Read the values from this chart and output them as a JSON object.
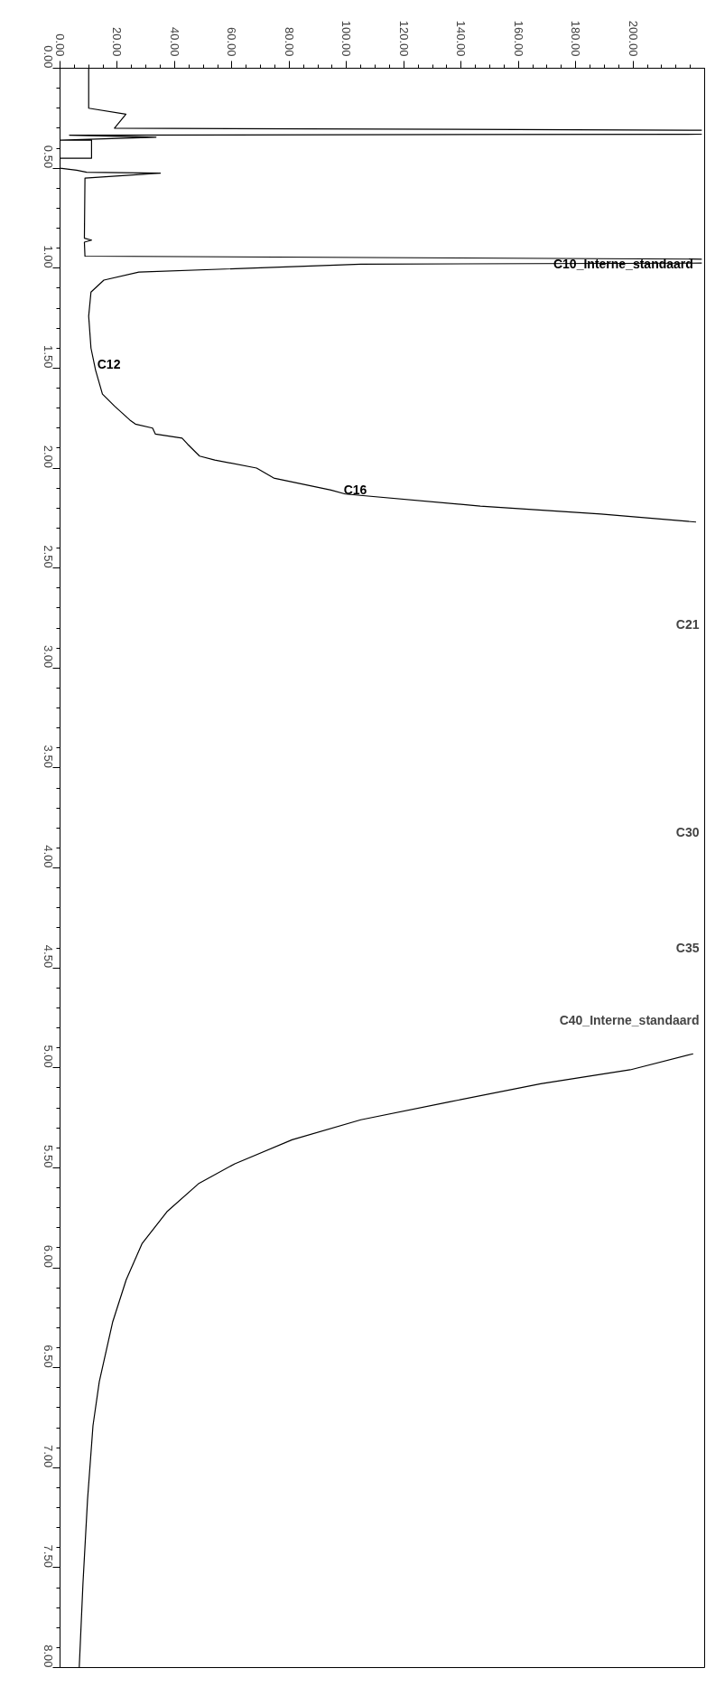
{
  "chart_data": {
    "type": "line",
    "xlim": [
      0,
      225
    ],
    "ylim": [
      8,
      0
    ],
    "xticks": [
      {
        "value": 0,
        "label": "0.00"
      },
      {
        "value": 20,
        "label": "20.00"
      },
      {
        "value": 40,
        "label": "40.00"
      },
      {
        "value": 60,
        "label": "60.00"
      },
      {
        "value": 80,
        "label": "80.00"
      },
      {
        "value": 100,
        "label": "100.00"
      },
      {
        "value": 120,
        "label": "120.00"
      },
      {
        "value": 140,
        "label": "140.00"
      },
      {
        "value": 160,
        "label": "160.00"
      },
      {
        "value": 180,
        "label": "180.00"
      },
      {
        "value": 200,
        "label": "200.00"
      },
      {
        "value": 5,
        "label": null
      },
      {
        "value": 10,
        "label": null
      },
      {
        "value": 15,
        "label": null
      },
      {
        "value": 25,
        "label": null
      },
      {
        "value": 30,
        "label": null
      },
      {
        "value": 35,
        "label": null
      },
      {
        "value": 45,
        "label": null
      },
      {
        "value": 50,
        "label": null
      },
      {
        "value": 55,
        "label": null
      },
      {
        "value": 65,
        "label": null
      },
      {
        "value": 70,
        "label": null
      },
      {
        "value": 75,
        "label": null
      },
      {
        "value": 85,
        "label": null
      },
      {
        "value": 90,
        "label": null
      },
      {
        "value": 95,
        "label": null
      },
      {
        "value": 105,
        "label": null
      },
      {
        "value": 110,
        "label": null
      },
      {
        "value": 115,
        "label": null
      },
      {
        "value": 125,
        "label": null
      },
      {
        "value": 130,
        "label": null
      },
      {
        "value": 135,
        "label": null
      },
      {
        "value": 145,
        "label": null
      },
      {
        "value": 150,
        "label": null
      },
      {
        "value": 155,
        "label": null
      },
      {
        "value": 165,
        "label": null
      },
      {
        "value": 170,
        "label": null
      },
      {
        "value": 175,
        "label": null
      },
      {
        "value": 185,
        "label": null
      },
      {
        "value": 190,
        "label": null
      },
      {
        "value": 195,
        "label": null
      },
      {
        "value": 205,
        "label": null
      },
      {
        "value": 210,
        "label": null
      },
      {
        "value": 215,
        "label": null
      },
      {
        "value": 220,
        "label": null
      }
    ],
    "yticks": [
      {
        "value": 0,
        "label": "0.00"
      },
      {
        "value": 0.5,
        "label": "0.50"
      },
      {
        "value": 1,
        "label": "1.00"
      },
      {
        "value": 1.5,
        "label": "1.50"
      },
      {
        "value": 2,
        "label": "2.00"
      },
      {
        "value": 2.5,
        "label": "2.50"
      },
      {
        "value": 3,
        "label": "3.00"
      },
      {
        "value": 3.5,
        "label": "3.50"
      },
      {
        "value": 4,
        "label": "4.00"
      },
      {
        "value": 4.5,
        "label": "4.50"
      },
      {
        "value": 5,
        "label": "5.00"
      },
      {
        "value": 5.5,
        "label": "5.50"
      },
      {
        "value": 6,
        "label": "6.00"
      },
      {
        "value": 6.5,
        "label": "6.50"
      },
      {
        "value": 7,
        "label": "7.00"
      },
      {
        "value": 7.5,
        "label": "7.50"
      },
      {
        "value": 8,
        "label": "8.00"
      },
      {
        "value": 0.1,
        "label": null
      },
      {
        "value": 0.2,
        "label": null
      },
      {
        "value": 0.3,
        "label": null
      },
      {
        "value": 0.4,
        "label": null
      },
      {
        "value": 0.6,
        "label": null
      },
      {
        "value": 0.7,
        "label": null
      },
      {
        "value": 0.8,
        "label": null
      },
      {
        "value": 0.9,
        "label": null
      },
      {
        "value": 1.1,
        "label": null
      },
      {
        "value": 1.2,
        "label": null
      },
      {
        "value": 1.3,
        "label": null
      },
      {
        "value": 1.4,
        "label": null
      },
      {
        "value": 1.6,
        "label": null
      },
      {
        "value": 1.7,
        "label": null
      },
      {
        "value": 1.8,
        "label": null
      },
      {
        "value": 1.9,
        "label": null
      },
      {
        "value": 2.1,
        "label": null
      },
      {
        "value": 2.2,
        "label": null
      },
      {
        "value": 2.3,
        "label": null
      },
      {
        "value": 2.4,
        "label": null
      },
      {
        "value": 2.6,
        "label": null
      },
      {
        "value": 2.7,
        "label": null
      },
      {
        "value": 2.8,
        "label": null
      },
      {
        "value": 2.9,
        "label": null
      },
      {
        "value": 3.1,
        "label": null
      },
      {
        "value": 3.2,
        "label": null
      },
      {
        "value": 3.3,
        "label": null
      },
      {
        "value": 3.4,
        "label": null
      },
      {
        "value": 3.6,
        "label": null
      },
      {
        "value": 3.7,
        "label": null
      },
      {
        "value": 3.8,
        "label": null
      },
      {
        "value": 3.9,
        "label": null
      },
      {
        "value": 4.1,
        "label": null
      },
      {
        "value": 4.2,
        "label": null
      },
      {
        "value": 4.3,
        "label": null
      },
      {
        "value": 4.4,
        "label": null
      },
      {
        "value": 4.6,
        "label": null
      },
      {
        "value": 4.7,
        "label": null
      },
      {
        "value": 4.8,
        "label": null
      },
      {
        "value": 4.9,
        "label": null
      },
      {
        "value": 5.1,
        "label": null
      },
      {
        "value": 5.2,
        "label": null
      },
      {
        "value": 5.3,
        "label": null
      },
      {
        "value": 5.4,
        "label": null
      },
      {
        "value": 5.6,
        "label": null
      },
      {
        "value": 5.7,
        "label": null
      },
      {
        "value": 5.8,
        "label": null
      },
      {
        "value": 5.9,
        "label": null
      },
      {
        "value": 6.1,
        "label": null
      },
      {
        "value": 6.2,
        "label": null
      },
      {
        "value": 6.3,
        "label": null
      },
      {
        "value": 6.4,
        "label": null
      },
      {
        "value": 6.6,
        "label": null
      },
      {
        "value": 6.7,
        "label": null
      },
      {
        "value": 6.8,
        "label": null
      },
      {
        "value": 6.9,
        "label": null
      },
      {
        "value": 7.1,
        "label": null
      },
      {
        "value": 7.2,
        "label": null
      },
      {
        "value": 7.3,
        "label": null
      },
      {
        "value": 7.4,
        "label": null
      },
      {
        "value": 7.6,
        "label": null
      },
      {
        "value": 7.7,
        "label": null
      },
      {
        "value": 7.8,
        "label": null
      },
      {
        "value": 7.9,
        "label": null
      }
    ],
    "grid": false,
    "series": [
      {
        "color": "#000000",
        "x": [
          10,
          10,
          23,
          19,
          224,
          null,
          224,
          3.3,
          33.5,
          0,
          11,
          11,
          0,
          0,
          5.8,
          9.3,
          35,
          8.7,
          8.5,
          11,
          8.5,
          8.7,
          224,
          null,
          224,
          105,
          27.5,
          15.3,
          10.8,
          10,
          10.8,
          12.4,
          14.8,
          19,
          24.4,
          26.3,
          32.3,
          33.3,
          42.6,
          44.5,
          48.7,
          54,
          68.6,
          74.6,
          94.6,
          99.6,
          146.7,
          188.8,
          222,
          null,
          221,
          199,
          167.8,
          136,
          105,
          81,
          61,
          48.3,
          37.3,
          28.6,
          23.1,
          18.4,
          13.7,
          11.5,
          9.6,
          8,
          6.7
        ],
        "values": [
          0,
          0.2,
          0.23,
          0.3,
          0.31,
          null,
          0.33,
          0.335,
          0.345,
          0.36,
          0.36,
          0.45,
          0.45,
          0.5,
          0.51,
          0.52,
          0.525,
          0.55,
          0.85,
          0.86,
          0.87,
          0.94,
          0.955,
          null,
          0.975,
          0.98,
          1.02,
          1.06,
          1.12,
          1.24,
          1.4,
          1.51,
          1.63,
          1.69,
          1.76,
          1.78,
          1.8,
          1.83,
          1.85,
          1.88,
          1.94,
          1.96,
          2.0,
          2.05,
          2.11,
          2.13,
          2.19,
          2.23,
          2.27,
          null,
          4.93,
          5.01,
          5.08,
          5.17,
          5.26,
          5.36,
          5.48,
          5.58,
          5.72,
          5.88,
          6.06,
          6.27,
          6.57,
          6.79,
          7.16,
          7.58,
          8.0
        ]
      }
    ],
    "annotations": [
      {
        "text": "C10_Interne_standaard",
        "x": 221,
        "y": 0.98
      },
      {
        "text": "C12",
        "x": 13,
        "y": 1.48
      },
      {
        "text": "C16",
        "x": 99,
        "y": 2.11
      },
      "C21",
      "C30",
      "C35",
      "C40_Interne_standaard"
    ]
  }
}
